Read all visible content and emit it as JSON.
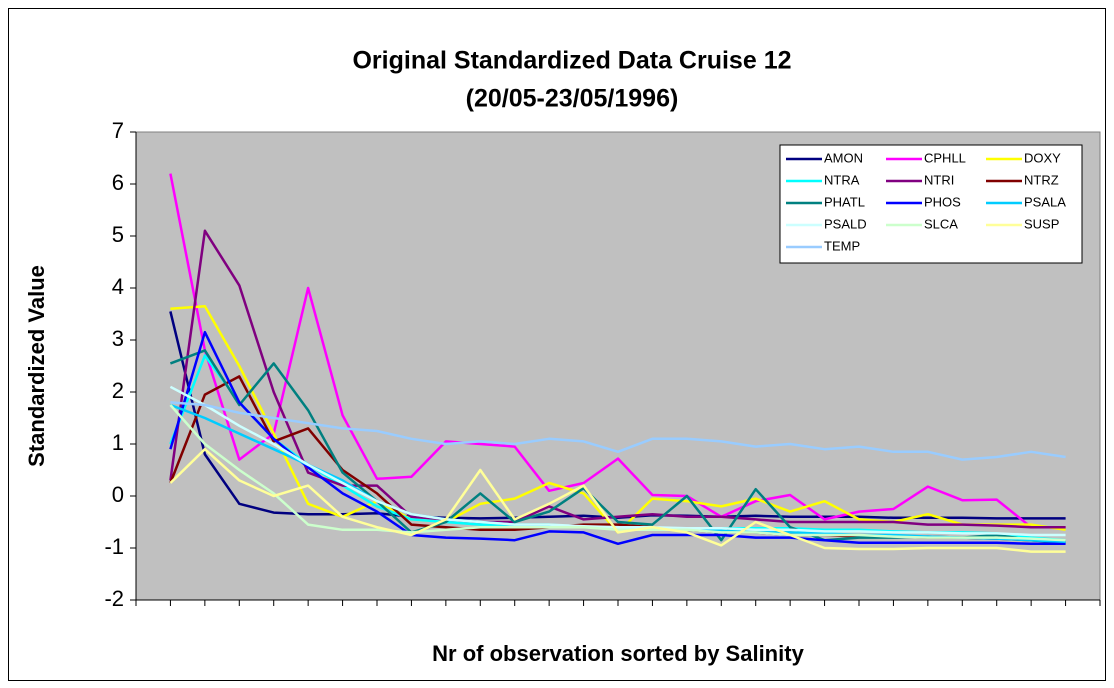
{
  "chart_data": {
    "type": "line",
    "title": [
      "Original Standardized Data Cruise 12",
      "(20/05-23/05/1996)"
    ],
    "ylabel": "Standardized Value",
    "xlabel": "Nr of observation sorted by Salinity",
    "categories": [
      null,
      null,
      null,
      null,
      null,
      null,
      null,
      null,
      null,
      null,
      null,
      null,
      null,
      null,
      null,
      null,
      null,
      null,
      null,
      null,
      null,
      null,
      null,
      null,
      null,
      null,
      null
    ],
    "ylim": [
      -2,
      7
    ],
    "yticks": [
      -2,
      -1,
      0,
      1,
      2,
      3,
      4,
      5,
      6,
      7
    ],
    "grid": false,
    "legend": "upper right",
    "series": [
      {
        "name": "AMON",
        "color": "#000080",
        "values": [
          3.55,
          0.8,
          -0.15,
          -0.32,
          -0.35,
          -0.35,
          -0.33,
          -0.4,
          -0.42,
          -0.43,
          -0.42,
          -0.4,
          -0.38,
          -0.42,
          -0.37,
          -0.38,
          -0.4,
          -0.38,
          -0.4,
          -0.4,
          -0.4,
          -0.42,
          -0.42,
          -0.42,
          -0.43,
          -0.43,
          -0.43
        ]
      },
      {
        "name": "CPHLL",
        "color": "#ff00ff",
        "values": [
          6.2,
          2.8,
          0.7,
          1.2,
          4.0,
          1.55,
          0.33,
          0.37,
          1.05,
          1.0,
          0.95,
          0.1,
          0.25,
          0.72,
          0.02,
          0.0,
          -0.4,
          -0.1,
          0.02,
          -0.45,
          -0.3,
          -0.25,
          0.18,
          -0.08,
          -0.07,
          -0.6,
          -0.6
        ]
      },
      {
        "name": "DOXY",
        "color": "#ffff00",
        "values": [
          3.6,
          3.65,
          2.5,
          1.2,
          -0.15,
          -0.4,
          -0.1,
          -0.45,
          -0.5,
          -0.15,
          -0.05,
          0.25,
          0.05,
          -0.7,
          -0.05,
          -0.1,
          -0.2,
          -0.05,
          -0.3,
          -0.1,
          -0.45,
          -0.5,
          -0.35,
          -0.55,
          -0.55,
          -0.55,
          -0.65
        ]
      },
      {
        "name": "NTRA",
        "color": "#00ffff",
        "values": [
          1.0,
          2.7,
          1.8,
          1.1,
          0.6,
          0.2,
          -0.2,
          -0.45,
          -0.5,
          -0.55,
          -0.55,
          -0.55,
          -0.6,
          -0.6,
          -0.62,
          -0.62,
          -0.62,
          -0.62,
          -0.62,
          -0.65,
          -0.65,
          -0.68,
          -0.7,
          -0.7,
          -0.72,
          -0.8,
          -0.85
        ]
      },
      {
        "name": "NTRI",
        "color": "#800080",
        "values": [
          0.3,
          5.1,
          4.05,
          2.0,
          0.45,
          0.2,
          0.2,
          -0.4,
          -0.45,
          -0.5,
          -0.5,
          -0.2,
          -0.45,
          -0.4,
          -0.35,
          -0.4,
          -0.4,
          -0.45,
          -0.5,
          -0.5,
          -0.5,
          -0.5,
          -0.55,
          -0.55,
          -0.57,
          -0.6,
          -0.6
        ]
      },
      {
        "name": "NTRZ",
        "color": "#800000",
        "values": [
          0.25,
          1.95,
          2.3,
          1.05,
          1.3,
          0.5,
          0.05,
          -0.55,
          -0.6,
          -0.65,
          -0.65,
          -0.6,
          -0.55,
          -0.55,
          -0.6,
          -0.65,
          -0.7,
          -0.7,
          -0.75,
          -0.75,
          -0.78,
          -0.78,
          -0.8,
          -0.8,
          -0.82,
          -0.85,
          -0.88
        ]
      },
      {
        "name": "PHATL",
        "color": "#008080",
        "values": [
          2.55,
          2.8,
          1.75,
          2.55,
          1.65,
          0.45,
          -0.1,
          -0.7,
          -0.5,
          0.05,
          -0.5,
          -0.3,
          0.15,
          -0.5,
          -0.55,
          0.0,
          -0.85,
          0.13,
          -0.6,
          -0.85,
          -0.8,
          -0.8,
          -0.78,
          -0.8,
          -0.75,
          -0.85,
          -0.9
        ]
      },
      {
        "name": "PHOS",
        "color": "#0000ff",
        "values": [
          0.9,
          3.15,
          1.8,
          1.1,
          0.55,
          0.05,
          -0.3,
          -0.75,
          -0.8,
          -0.82,
          -0.85,
          -0.68,
          -0.7,
          -0.92,
          -0.75,
          -0.75,
          -0.75,
          -0.8,
          -0.8,
          -0.85,
          -0.9,
          -0.9,
          -0.9,
          -0.9,
          -0.9,
          -0.92,
          -0.92
        ]
      },
      {
        "name": "PSALA",
        "color": "#00ccff",
        "values": [
          1.75,
          1.5,
          1.2,
          0.9,
          0.6,
          0.3,
          -0.1,
          -0.35,
          -0.45,
          -0.5,
          -0.55,
          -0.58,
          -0.6,
          -0.62,
          -0.65,
          -0.65,
          -0.67,
          -0.7,
          -0.7,
          -0.72,
          -0.75,
          -0.75,
          -0.78,
          -0.8,
          -0.82,
          -0.85,
          -0.88
        ]
      },
      {
        "name": "PSALD",
        "color": "#ccffff",
        "values": [
          2.1,
          1.75,
          1.35,
          1.0,
          0.6,
          0.25,
          -0.1,
          -0.35,
          -0.45,
          -0.5,
          -0.55,
          -0.55,
          -0.58,
          -0.6,
          -0.6,
          -0.62,
          -0.62,
          -0.65,
          -0.65,
          -0.68,
          -0.68,
          -0.7,
          -0.7,
          -0.72,
          -0.72,
          -0.75,
          -0.75
        ]
      },
      {
        "name": "SLCA",
        "color": "#ccffcc",
        "values": [
          1.75,
          1.0,
          0.5,
          0.05,
          -0.55,
          -0.65,
          -0.65,
          -0.7,
          -0.65,
          -0.6,
          -0.6,
          -0.6,
          -0.6,
          -0.65,
          -0.65,
          -0.65,
          -0.7,
          -0.7,
          -0.75,
          -0.75,
          -0.75,
          -0.78,
          -0.8,
          -0.8,
          -0.8,
          -0.82,
          -0.85
        ]
      },
      {
        "name": "SUSP",
        "color": "#ffff99",
        "values": [
          0.25,
          0.9,
          0.3,
          0.0,
          0.2,
          -0.4,
          -0.6,
          -0.75,
          -0.45,
          0.5,
          -0.45,
          -0.15,
          0.2,
          -0.7,
          -0.6,
          -0.7,
          -0.95,
          -0.5,
          -0.75,
          -1.0,
          -1.02,
          -1.02,
          -1.0,
          -1.0,
          -1.0,
          -1.07,
          -1.07
        ]
      },
      {
        "name": "TEMP",
        "color": "#99ccff",
        "values": [
          1.8,
          1.75,
          1.6,
          1.5,
          1.4,
          1.3,
          1.25,
          1.1,
          1.0,
          1.05,
          1.0,
          1.1,
          1.05,
          0.85,
          1.1,
          1.1,
          1.05,
          0.95,
          1.0,
          0.9,
          0.95,
          0.85,
          0.85,
          0.7,
          0.75,
          0.85,
          0.75
        ]
      }
    ]
  }
}
